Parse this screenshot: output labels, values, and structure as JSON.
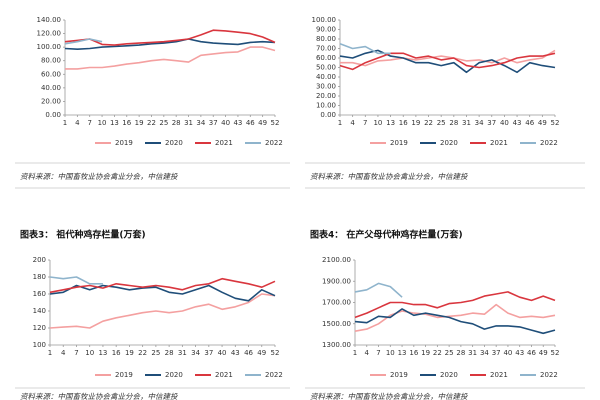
{
  "chart_data": [
    {
      "type": "line",
      "source": "资料来源：中国畜牧业协会禽业分会，中信建投",
      "x": [
        1,
        4,
        7,
        10,
        13,
        16,
        19,
        22,
        25,
        28,
        31,
        34,
        37,
        40,
        43,
        46,
        49,
        52
      ],
      "xticks": [
        1,
        4,
        7,
        10,
        13,
        16,
        19,
        22,
        25,
        28,
        31,
        34,
        37,
        40,
        43,
        46,
        49,
        52
      ],
      "xlim": [
        1,
        52
      ],
      "ylim": [
        0,
        140
      ],
      "yticks": [
        {
          "value": 0,
          "label": "0.00"
        },
        {
          "value": 20,
          "label": "20.00"
        },
        {
          "value": 40,
          "label": "40.00"
        },
        {
          "value": 60,
          "label": "60.00"
        },
        {
          "value": 80,
          "label": "80.00"
        },
        {
          "value": 100,
          "label": "100.00"
        },
        {
          "value": 120,
          "label": "120.00"
        },
        {
          "value": 140,
          "label": "140.00"
        }
      ],
      "series": [
        {
          "name": "2019",
          "color": "#f4a0a0",
          "values": [
            68,
            68,
            70,
            70,
            72,
            75,
            77,
            80,
            82,
            80,
            78,
            88,
            90,
            92,
            93,
            100,
            100,
            95
          ]
        },
        {
          "name": "2020",
          "color": "#1f4e79",
          "values": [
            98,
            97,
            98,
            100,
            101,
            102,
            103,
            105,
            106,
            108,
            112,
            108,
            106,
            105,
            104,
            107,
            108,
            107
          ]
        },
        {
          "name": "2021",
          "color": "#d9363e",
          "values": [
            108,
            110,
            112,
            104,
            103,
            105,
            106,
            107,
            108,
            110,
            112,
            118,
            125,
            124,
            122,
            120,
            115,
            107
          ]
        },
        {
          "name": "2022",
          "color": "#8fb4cc",
          "values": [
            105,
            108,
            112,
            108,
            null,
            null,
            null,
            null,
            null,
            null,
            null,
            null,
            null,
            null,
            null,
            null,
            null,
            null
          ]
        }
      ]
    },
    {
      "type": "line",
      "source": "资料来源：中国畜牧业协会禽业分会，中信建投",
      "x": [
        1,
        4,
        7,
        10,
        13,
        16,
        19,
        22,
        25,
        28,
        31,
        34,
        37,
        40,
        43,
        46,
        49,
        52
      ],
      "xticks": [
        1,
        4,
        7,
        10,
        13,
        16,
        19,
        22,
        25,
        28,
        31,
        34,
        37,
        40,
        43,
        46,
        49,
        52
      ],
      "xlim": [
        1,
        52
      ],
      "ylim": [
        0,
        100
      ],
      "yticks": [
        {
          "value": 0,
          "label": "0.00"
        },
        {
          "value": 10,
          "label": "10.00"
        },
        {
          "value": 20,
          "label": "20.00"
        },
        {
          "value": 30,
          "label": "30.00"
        },
        {
          "value": 40,
          "label": "40.00"
        },
        {
          "value": 50,
          "label": "50.00"
        },
        {
          "value": 60,
          "label": "60.00"
        },
        {
          "value": 70,
          "label": "70.00"
        },
        {
          "value": 80,
          "label": "80.00"
        },
        {
          "value": 90,
          "label": "90.00"
        },
        {
          "value": 100,
          "label": "100.00"
        }
      ],
      "series": [
        {
          "name": "2019",
          "color": "#f4a0a0",
          "values": [
            55,
            55,
            52,
            57,
            58,
            60,
            58,
            60,
            62,
            60,
            57,
            58,
            55,
            60,
            55,
            58,
            60,
            68
          ]
        },
        {
          "name": "2020",
          "color": "#1f4e79",
          "values": [
            62,
            60,
            65,
            68,
            62,
            60,
            55,
            55,
            52,
            55,
            45,
            55,
            58,
            52,
            45,
            55,
            52,
            50
          ]
        },
        {
          "name": "2021",
          "color": "#d9363e",
          "values": [
            52,
            48,
            55,
            60,
            65,
            65,
            60,
            62,
            58,
            60,
            52,
            50,
            52,
            55,
            60,
            62,
            62,
            65
          ]
        },
        {
          "name": "2022",
          "color": "#8fb4cc",
          "values": [
            75,
            70,
            72,
            65,
            65,
            null,
            null,
            null,
            null,
            null,
            null,
            null,
            null,
            null,
            null,
            null,
            null,
            null
          ]
        }
      ]
    },
    {
      "type": "line",
      "title": "图表3：  祖代种鸡存栏量(万套)",
      "source": "资料来源：中国畜牧业协会禽业分会，中信建投",
      "x": [
        1,
        4,
        7,
        10,
        13,
        16,
        19,
        22,
        25,
        28,
        31,
        34,
        37,
        40,
        43,
        46,
        49,
        52
      ],
      "xticks": [
        1,
        4,
        7,
        10,
        13,
        16,
        19,
        22,
        25,
        28,
        31,
        34,
        37,
        40,
        43,
        46,
        49,
        52
      ],
      "xlim": [
        1,
        52
      ],
      "ylim": [
        100,
        200
      ],
      "yticks": [
        100,
        120,
        140,
        160,
        180,
        200
      ],
      "series": [
        {
          "name": "2019",
          "color": "#f4a0a0",
          "values": [
            120,
            121,
            122,
            120,
            128,
            132,
            135,
            138,
            140,
            138,
            140,
            145,
            148,
            142,
            145,
            150,
            160,
            158
          ]
        },
        {
          "name": "2020",
          "color": "#1f4e79",
          "values": [
            160,
            162,
            170,
            165,
            170,
            168,
            165,
            167,
            168,
            162,
            160,
            165,
            170,
            162,
            155,
            152,
            165,
            158
          ]
        },
        {
          "name": "2021",
          "color": "#d9363e",
          "values": [
            162,
            165,
            168,
            170,
            167,
            172,
            170,
            168,
            170,
            168,
            165,
            170,
            172,
            178,
            175,
            172,
            168,
            175
          ]
        },
        {
          "name": "2022",
          "color": "#8fb4cc",
          "values": [
            180,
            178,
            180,
            172,
            172,
            null,
            null,
            null,
            null,
            null,
            null,
            null,
            null,
            null,
            null,
            null,
            null,
            null
          ]
        }
      ]
    },
    {
      "type": "line",
      "title": "图表4：  在产父母代种鸡存栏量(万套)",
      "source": "资料来源：中国畜牧业协会禽业分会，中信建投",
      "x": [
        1,
        4,
        7,
        10,
        13,
        16,
        19,
        22,
        25,
        28,
        31,
        34,
        37,
        40,
        43,
        46,
        49,
        52
      ],
      "xticks": [
        1,
        4,
        7,
        10,
        13,
        16,
        19,
        22,
        25,
        28,
        31,
        34,
        37,
        40,
        43,
        46,
        49,
        52
      ],
      "xlim": [
        1,
        52
      ],
      "ylim": [
        1300,
        2100
      ],
      "yticks": [
        {
          "value": 1300,
          "label": "1300.00"
        },
        {
          "value": 1500,
          "label": "1500.00"
        },
        {
          "value": 1700,
          "label": "1700.00"
        },
        {
          "value": 1900,
          "label": "1900.00"
        },
        {
          "value": 2100,
          "label": "2100.00"
        }
      ],
      "series": [
        {
          "name": "2019",
          "color": "#f4a0a0",
          "values": [
            1430,
            1450,
            1500,
            1580,
            1620,
            1600,
            1590,
            1560,
            1570,
            1580,
            1600,
            1590,
            1680,
            1600,
            1560,
            1570,
            1560,
            1580
          ]
        },
        {
          "name": "2020",
          "color": "#1f4e79",
          "values": [
            1520,
            1510,
            1570,
            1560,
            1640,
            1580,
            1600,
            1580,
            1560,
            1520,
            1500,
            1450,
            1480,
            1480,
            1470,
            1440,
            1410,
            1440
          ]
        },
        {
          "name": "2021",
          "color": "#d9363e",
          "values": [
            1560,
            1600,
            1650,
            1700,
            1700,
            1680,
            1680,
            1650,
            1690,
            1700,
            1720,
            1760,
            1780,
            1800,
            1750,
            1720,
            1760,
            1720
          ]
        },
        {
          "name": "2022",
          "color": "#8fb4cc",
          "values": [
            1800,
            1820,
            1880,
            1850,
            1750,
            null,
            null,
            null,
            null,
            null,
            null,
            null,
            null,
            null,
            null,
            null,
            null,
            null
          ]
        }
      ]
    }
  ]
}
